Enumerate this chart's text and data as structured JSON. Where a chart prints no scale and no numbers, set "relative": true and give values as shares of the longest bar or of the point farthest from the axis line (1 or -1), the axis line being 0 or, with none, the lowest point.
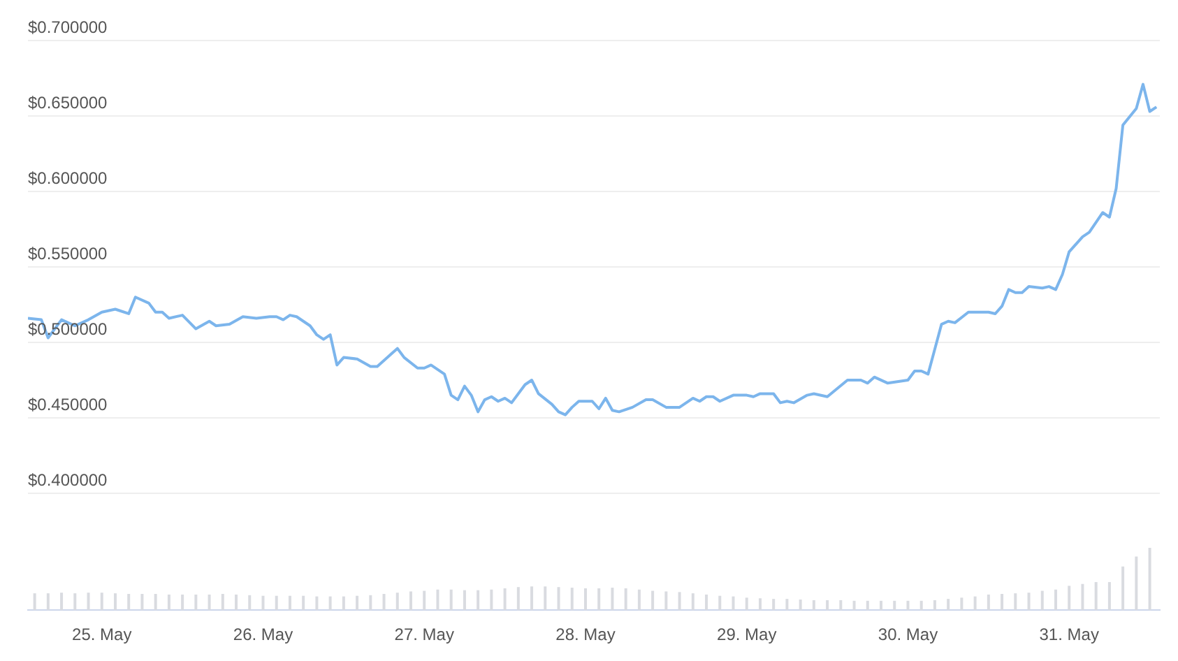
{
  "chart_data": [
    {
      "type": "line",
      "x": [
        "--05-24T13:00",
        "--05-24T15:00",
        "--05-24T16:00",
        "--05-24T18:00",
        "--05-24T20:00",
        "--05-24T22:00",
        "--05-25T00:00",
        "--05-25T02:00",
        "--05-25T04:00",
        "--05-25T05:00",
        "--05-25T07:00",
        "--05-25T08:00",
        "--05-25T09:00",
        "--05-25T10:00",
        "--05-25T12:00",
        "--05-25T14:00",
        "--05-25T16:00",
        "--05-25T17:00",
        "--05-25T19:00",
        "--05-25T21:00",
        "--05-25T23:00",
        "--05-26T01:00",
        "--05-26T02:00",
        "--05-26T03:00",
        "--05-26T04:00",
        "--05-26T05:00",
        "--05-26T07:00",
        "--05-26T08:00",
        "--05-26T09:00",
        "--05-26T10:00",
        "--05-26T11:00",
        "--05-26T12:00",
        "--05-26T14:00",
        "--05-26T16:00",
        "--05-26T17:00",
        "--05-26T19:00",
        "--05-26T20:00",
        "--05-26T21:00",
        "--05-26T23:00",
        "--05-27T00:00",
        "--05-27T01:00",
        "--05-27T03:00",
        "--05-27T04:00",
        "--05-27T05:00",
        "--05-27T06:00",
        "--05-27T07:00",
        "--05-27T08:00",
        "--05-27T09:00",
        "--05-27T10:00",
        "--05-27T11:00",
        "--05-27T12:00",
        "--05-27T13:00",
        "--05-27T15:00",
        "--05-27T16:00",
        "--05-27T17:00",
        "--05-27T19:00",
        "--05-27T20:00",
        "--05-27T21:00",
        "--05-27T22:00",
        "--05-27T23:00",
        "--05-28T01:00",
        "--05-28T02:00",
        "--05-28T03:00",
        "--05-28T04:00",
        "--05-28T05:00",
        "--05-28T07:00",
        "--05-28T09:00",
        "--05-28T10:00",
        "--05-28T12:00",
        "--05-28T14:00",
        "--05-28T16:00",
        "--05-28T17:00",
        "--05-28T18:00",
        "--05-28T19:00",
        "--05-28T20:00",
        "--05-28T22:00",
        "--05-28T23:00",
        "--05-29T00:00",
        "--05-29T01:00",
        "--05-29T02:00",
        "--05-29T04:00",
        "--05-29T05:00",
        "--05-29T06:00",
        "--05-29T07:00",
        "--05-29T09:00",
        "--05-29T10:00",
        "--05-29T12:00",
        "--05-29T15:00",
        "--05-29T17:00",
        "--05-29T18:00",
        "--05-29T19:00",
        "--05-29T21:00",
        "--05-30T00:00",
        "--05-30T01:00",
        "--05-30T02:00",
        "--05-30T03:00",
        "--05-30T05:00",
        "--05-30T06:00",
        "--05-30T07:00",
        "--05-30T09:00",
        "--05-30T12:00",
        "--05-30T13:00",
        "--05-30T14:00",
        "--05-30T15:00",
        "--05-30T16:00",
        "--05-30T17:00",
        "--05-30T18:00",
        "--05-30T20:00",
        "--05-30T21:00",
        "--05-30T22:00",
        "--05-30T23:00",
        "--05-31T00:00",
        "--05-31T02:00",
        "--05-31T03:00",
        "--05-31T05:00",
        "--05-31T06:00",
        "--05-31T07:00",
        "--05-31T08:00",
        "--05-31T10:00",
        "--05-31T11:00",
        "--05-31T12:00",
        "--05-31T13:00"
      ],
      "series": [
        {
          "color": "#7cb5ec",
          "values": [
            0.516,
            0.515,
            0.503,
            0.515,
            0.511,
            0.515,
            0.52,
            0.522,
            0.519,
            0.53,
            0.526,
            0.52,
            0.52,
            0.516,
            0.518,
            0.509,
            0.514,
            0.511,
            0.512,
            0.517,
            0.516,
            0.517,
            0.517,
            0.515,
            0.518,
            0.517,
            0.511,
            0.505,
            0.502,
            0.505,
            0.485,
            0.49,
            0.489,
            0.484,
            0.484,
            0.492,
            0.496,
            0.49,
            0.483,
            0.483,
            0.485,
            0.479,
            0.465,
            0.462,
            0.471,
            0.465,
            0.454,
            0.462,
            0.464,
            0.461,
            0.463,
            0.46,
            0.472,
            0.475,
            0.466,
            0.459,
            0.454,
            0.452,
            0.457,
            0.461,
            0.461,
            0.456,
            0.463,
            0.455,
            0.454,
            0.457,
            0.462,
            0.462,
            0.457,
            0.457,
            0.463,
            0.461,
            0.464,
            0.464,
            0.461,
            0.465,
            0.465,
            0.465,
            0.464,
            0.466,
            0.466,
            0.46,
            0.461,
            0.46,
            0.465,
            0.466,
            0.464,
            0.475,
            0.475,
            0.473,
            0.477,
            0.473,
            0.475,
            0.481,
            0.481,
            0.479,
            0.512,
            0.514,
            0.513,
            0.52,
            0.52,
            0.519,
            0.524,
            0.535,
            0.533,
            0.533,
            0.537,
            0.536,
            0.537,
            0.535,
            0.545,
            0.56,
            0.57,
            0.573,
            0.586,
            0.583,
            0.602,
            0.644,
            0.655,
            0.671,
            0.653,
            0.656
          ]
        }
      ],
      "xlim": [
        "--05-24T13:00",
        "--05-31T13:30"
      ],
      "ylim": [
        0.4,
        0.7
      ],
      "yticks": [
        {
          "value": 0.4,
          "label": "$0.400000"
        },
        {
          "value": 0.45,
          "label": "$0.450000"
        },
        {
          "value": 0.5,
          "label": "$0.500000"
        },
        {
          "value": 0.55,
          "label": "$0.550000"
        },
        {
          "value": 0.6,
          "label": "$0.600000"
        },
        {
          "value": 0.65,
          "label": "$0.650000"
        },
        {
          "value": 0.7,
          "label": "$0.700000"
        }
      ],
      "grid": "y",
      "tick_labels": "y",
      "marker": "none",
      "line_style": "solid",
      "legend": false
    },
    {
      "type": "bar",
      "relative": true,
      "x": [
        "--05-24T14:00",
        "--05-24T16:00",
        "--05-24T18:00",
        "--05-24T20:00",
        "--05-24T22:00",
        "--05-25T00:00",
        "--05-25T02:00",
        "--05-25T04:00",
        "--05-25T06:00",
        "--05-25T08:00",
        "--05-25T10:00",
        "--05-25T12:00",
        "--05-25T14:00",
        "--05-25T16:00",
        "--05-25T18:00",
        "--05-25T20:00",
        "--05-25T22:00",
        "--05-26T00:00",
        "--05-26T02:00",
        "--05-26T04:00",
        "--05-26T06:00",
        "--05-26T08:00",
        "--05-26T10:00",
        "--05-26T12:00",
        "--05-26T14:00",
        "--05-26T16:00",
        "--05-26T18:00",
        "--05-26T20:00",
        "--05-26T22:00",
        "--05-27T00:00",
        "--05-27T02:00",
        "--05-27T04:00",
        "--05-27T06:00",
        "--05-27T08:00",
        "--05-27T10:00",
        "--05-27T12:00",
        "--05-27T14:00",
        "--05-27T16:00",
        "--05-27T18:00",
        "--05-27T20:00",
        "--05-27T22:00",
        "--05-28T00:00",
        "--05-28T02:00",
        "--05-28T04:00",
        "--05-28T06:00",
        "--05-28T08:00",
        "--05-28T10:00",
        "--05-28T12:00",
        "--05-28T14:00",
        "--05-28T16:00",
        "--05-28T18:00",
        "--05-28T20:00",
        "--05-28T22:00",
        "--05-29T00:00",
        "--05-29T02:00",
        "--05-29T04:00",
        "--05-29T06:00",
        "--05-29T08:00",
        "--05-29T10:00",
        "--05-29T12:00",
        "--05-29T14:00",
        "--05-29T16:00",
        "--05-29T18:00",
        "--05-29T20:00",
        "--05-29T22:00",
        "--05-30T00:00",
        "--05-30T02:00",
        "--05-30T04:00",
        "--05-30T06:00",
        "--05-30T08:00",
        "--05-30T10:00",
        "--05-30T12:00",
        "--05-30T14:00",
        "--05-30T16:00",
        "--05-30T18:00",
        "--05-30T20:00",
        "--05-30T22:00",
        "--05-31T00:00",
        "--05-31T02:00",
        "--05-31T04:00",
        "--05-31T06:00",
        "--05-31T08:00",
        "--05-31T10:00",
        "--05-31T12:00"
      ],
      "series": [
        {
          "color": "#d9dbe0",
          "values": [
            0.27,
            0.27,
            0.28,
            0.27,
            0.28,
            0.28,
            0.27,
            0.26,
            0.26,
            0.26,
            0.25,
            0.25,
            0.25,
            0.25,
            0.26,
            0.25,
            0.24,
            0.23,
            0.23,
            0.23,
            0.23,
            0.22,
            0.22,
            0.22,
            0.23,
            0.24,
            0.26,
            0.28,
            0.3,
            0.31,
            0.33,
            0.33,
            0.32,
            0.32,
            0.33,
            0.35,
            0.37,
            0.38,
            0.38,
            0.37,
            0.36,
            0.35,
            0.35,
            0.36,
            0.35,
            0.33,
            0.31,
            0.3,
            0.29,
            0.27,
            0.25,
            0.23,
            0.22,
            0.2,
            0.19,
            0.18,
            0.18,
            0.17,
            0.16,
            0.16,
            0.16,
            0.15,
            0.15,
            0.15,
            0.15,
            0.15,
            0.15,
            0.16,
            0.18,
            0.2,
            0.22,
            0.25,
            0.26,
            0.27,
            0.28,
            0.31,
            0.33,
            0.39,
            0.42,
            0.45,
            0.45,
            0.7,
            0.86,
            1
          ]
        }
      ],
      "xlim": [
        "--05-24T13:00",
        "--05-31T13:30"
      ],
      "xticks": [
        {
          "value": "--05-25",
          "label": "25. May"
        },
        {
          "value": "--05-26",
          "label": "26. May"
        },
        {
          "value": "--05-27",
          "label": "27. May"
        },
        {
          "value": "--05-28",
          "label": "28. May"
        },
        {
          "value": "--05-29",
          "label": "29. May"
        },
        {
          "value": "--05-30",
          "label": "30. May"
        },
        {
          "value": "--05-31",
          "label": "31. May"
        }
      ],
      "tick_labels": "x",
      "grid": false,
      "legend": false
    }
  ]
}
